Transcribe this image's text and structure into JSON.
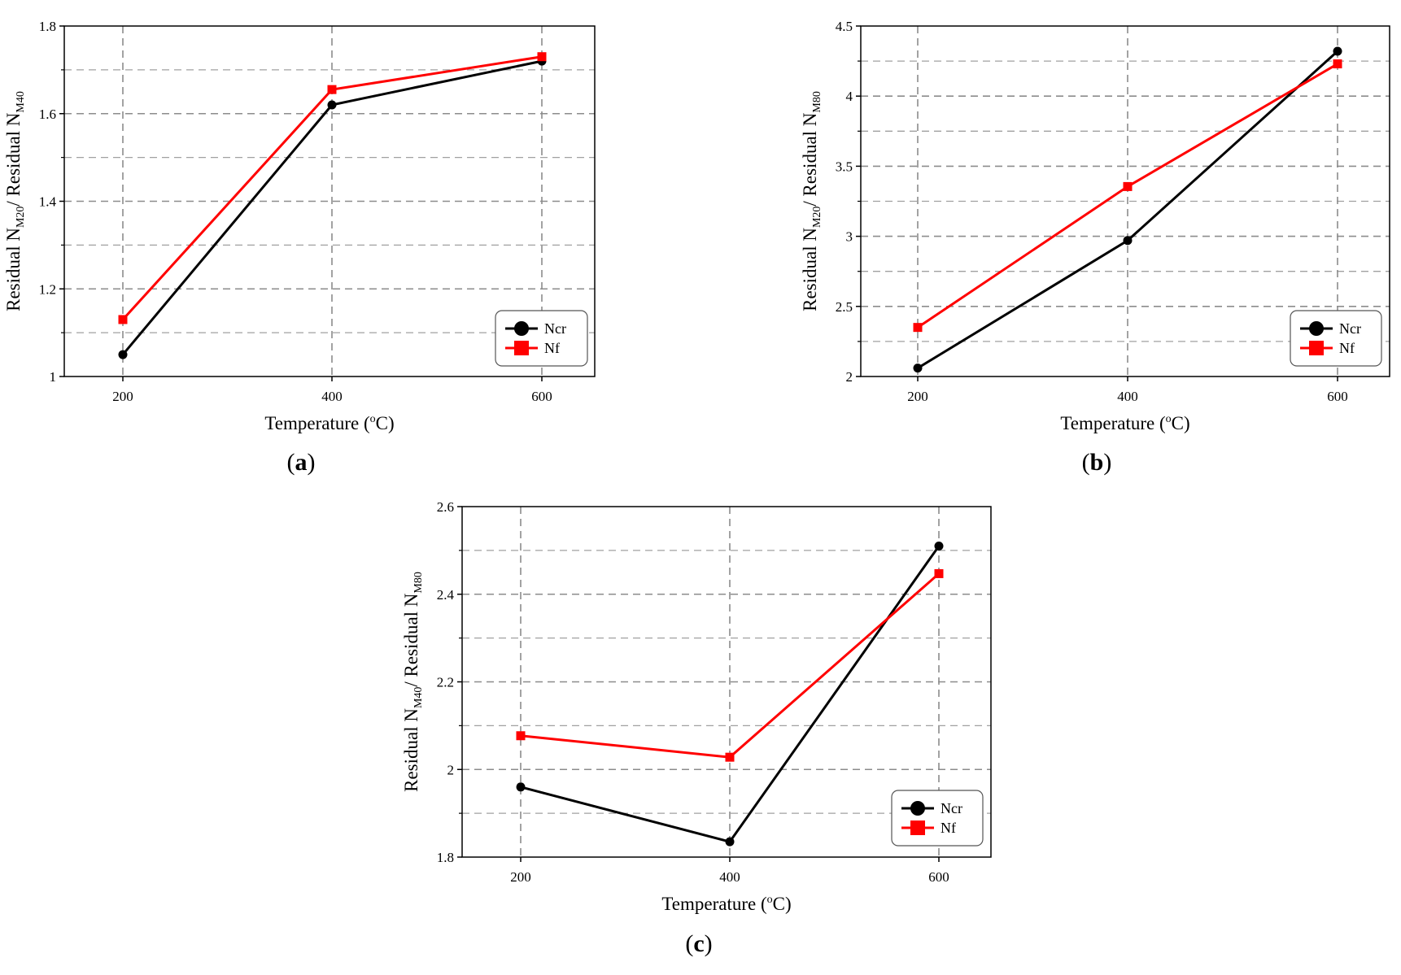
{
  "chart_data": [
    {
      "type": "line",
      "panel_label": "a",
      "x": [
        200,
        400,
        600
      ],
      "xlabel": {
        "text": "Temperature (",
        "sup": "o",
        "tail": "C)"
      },
      "ylabel": {
        "pre": "Residual N",
        "sub1": "M20",
        "mid": "/ Residual N",
        "sub2": "M40"
      },
      "ylim": [
        1,
        1.8
      ],
      "yticks": [
        1,
        1.2,
        1.4,
        1.6,
        1.8
      ],
      "ytick_labels": [
        "1",
        "1.2",
        "1.4",
        "1.6",
        "1.8"
      ],
      "xtick_labels": [
        "200",
        "400",
        "600"
      ],
      "series": [
        {
          "name": "Ncr",
          "color": "#000000",
          "marker": "circle",
          "values": [
            1.05,
            1.62,
            1.72
          ]
        },
        {
          "name": "Nf",
          "color": "#ff0000",
          "marker": "square",
          "values": [
            1.13,
            1.655,
            1.73
          ]
        }
      ],
      "grid": true,
      "legend": "bottom-right"
    },
    {
      "type": "line",
      "panel_label": "b",
      "x": [
        200,
        400,
        600
      ],
      "xlabel": {
        "text": "Temperature (",
        "sup": "o",
        "tail": "C)"
      },
      "ylabel": {
        "pre": "Residual N",
        "sub1": "M20",
        "mid": "/ Residual N",
        "sub2": "M80"
      },
      "ylim": [
        2,
        4.5
      ],
      "yticks": [
        2,
        2.5,
        3,
        3.5,
        4,
        4.5
      ],
      "ytick_labels": [
        "2",
        "2.5",
        "3",
        "3.5",
        "4",
        "4.5"
      ],
      "xtick_labels": [
        "200",
        "400",
        "600"
      ],
      "series": [
        {
          "name": "Ncr",
          "color": "#000000",
          "marker": "circle",
          "values": [
            2.06,
            2.97,
            4.32
          ]
        },
        {
          "name": "Nf",
          "color": "#ff0000",
          "marker": "square",
          "values": [
            2.35,
            3.355,
            4.23
          ]
        }
      ],
      "grid": true,
      "legend": "bottom-right"
    },
    {
      "type": "line",
      "panel_label": "c",
      "x": [
        200,
        400,
        600
      ],
      "xlabel": {
        "text": "Temperature (",
        "sup": "o",
        "tail": "C)"
      },
      "ylabel": {
        "pre": "Residual N",
        "sub1": "M40",
        "mid": "/ Residual N",
        "sub2": "M80"
      },
      "ylim": [
        1.8,
        2.6
      ],
      "yticks": [
        1.8,
        2.0,
        2.2,
        2.4,
        2.6
      ],
      "ytick_labels": [
        "1.8",
        "2",
        "2.2",
        "2.4",
        "2.6"
      ],
      "xtick_labels": [
        "200",
        "400",
        "600"
      ],
      "series": [
        {
          "name": "Ncr",
          "color": "#000000",
          "marker": "circle",
          "values": [
            1.96,
            1.835,
            2.51
          ]
        },
        {
          "name": "Nf",
          "color": "#ff0000",
          "marker": "square",
          "values": [
            2.077,
            2.028,
            2.447
          ]
        }
      ],
      "grid": true,
      "legend": "bottom-right"
    }
  ]
}
